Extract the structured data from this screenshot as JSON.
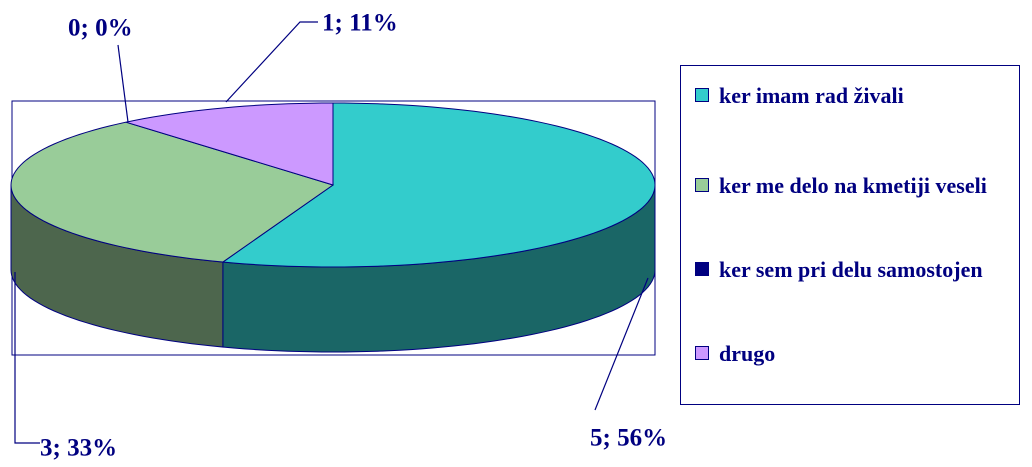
{
  "chart_data": {
    "type": "pie3d",
    "categories": [
      "ker imam rad živali",
      "ker me delo na kmetiji veseli",
      "ker sem pri delu samostojen",
      "drugo"
    ],
    "values": [
      5,
      3,
      0,
      1
    ],
    "value_labels": [
      "5; 56%",
      "3; 33%",
      "0; 0%",
      "1; 11%"
    ],
    "colors": [
      "#33cccc",
      "#99cc99",
      "#000080",
      "#cc99ff"
    ],
    "legend": "right"
  }
}
